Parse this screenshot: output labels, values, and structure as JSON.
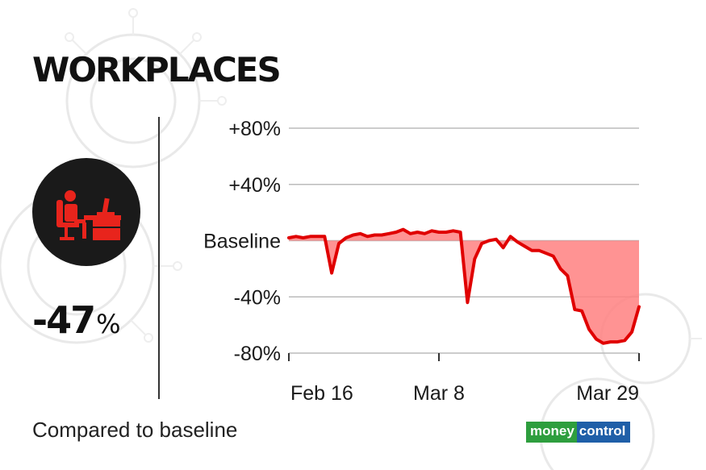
{
  "header": {
    "title": "WORKPLACES"
  },
  "summary": {
    "value": "-47",
    "unit": "%",
    "icon": "office-worker-icon",
    "caption": "Compared to baseline"
  },
  "brand": {
    "part1": "money",
    "part2": "control",
    "color1": "#2e9e3e",
    "color2": "#1f5fa8"
  },
  "colors": {
    "line": "#e00000",
    "fill": "#ff8080",
    "grid": "#bbbbbb",
    "icon_red": "#e8241c",
    "circle": "#1a1a1a"
  },
  "chart_data": {
    "type": "area",
    "ylim": [
      -80,
      80
    ],
    "y_ticks": [
      {
        "value": 80,
        "label": "+80%"
      },
      {
        "value": 40,
        "label": "+40%"
      },
      {
        "value": 0,
        "label": "Baseline"
      },
      {
        "value": -40,
        "label": "-40%"
      },
      {
        "value": -80,
        "label": "-80%"
      }
    ],
    "x_ticks": [
      "Feb 16",
      "Mar 8",
      "Mar 29"
    ],
    "grid": true,
    "series": [
      {
        "values": [
          2,
          3,
          2,
          3,
          3,
          3,
          -23,
          -2,
          2,
          4,
          5,
          3,
          4,
          4,
          5,
          6,
          8,
          5,
          6,
          5,
          7,
          6,
          6,
          7,
          6,
          -44,
          -13,
          -2,
          0,
          1,
          -5,
          3,
          -1,
          -4,
          -7,
          -7,
          -9,
          -11,
          -20,
          -25,
          -49,
          -50,
          -63,
          -70,
          -73,
          -72,
          -72,
          -71,
          -65,
          -47
        ]
      }
    ]
  }
}
